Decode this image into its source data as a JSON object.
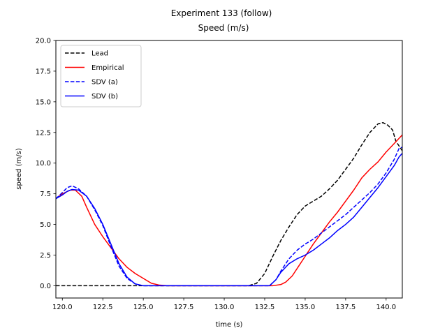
{
  "chart_data": {
    "type": "line",
    "title": "Experiment 133 (follow)",
    "subtitle": "Speed (m/s)",
    "xlabel": "time (s)",
    "ylabel": "speed (m/s)",
    "xlim": [
      119.6,
      141.0
    ],
    "ylim": [
      -1.0,
      20.0
    ],
    "xticks": [
      120.0,
      122.5,
      125.0,
      127.5,
      130.0,
      132.5,
      135.0,
      137.5,
      140.0
    ],
    "xtick_labels": [
      "120.0",
      "122.5",
      "125.0",
      "127.5",
      "130.0",
      "132.5",
      "135.0",
      "137.5",
      "140.0"
    ],
    "yticks": [
      0.0,
      2.5,
      5.0,
      7.5,
      10.0,
      12.5,
      15.0,
      17.5,
      20.0
    ],
    "ytick_labels": [
      "0.0",
      "2.5",
      "5.0",
      "7.5",
      "10.0",
      "12.5",
      "15.0",
      "17.5",
      "20.0"
    ],
    "grid": false,
    "legend_position": "upper-left",
    "series": [
      {
        "name": "Lead",
        "color": "#000000",
        "style": "dashed",
        "points": [
          [
            119.6,
            0.0
          ],
          [
            131.5,
            0.0
          ],
          [
            132.0,
            0.2
          ],
          [
            132.5,
            1.0
          ],
          [
            133.0,
            2.4
          ],
          [
            133.5,
            3.7
          ],
          [
            134.0,
            4.8
          ],
          [
            134.5,
            5.8
          ],
          [
            135.0,
            6.5
          ],
          [
            135.5,
            6.9
          ],
          [
            136.0,
            7.3
          ],
          [
            136.5,
            7.9
          ],
          [
            137.0,
            8.6
          ],
          [
            137.5,
            9.5
          ],
          [
            138.0,
            10.4
          ],
          [
            138.5,
            11.5
          ],
          [
            139.0,
            12.5
          ],
          [
            139.5,
            13.2
          ],
          [
            139.8,
            13.3
          ],
          [
            140.1,
            13.1
          ],
          [
            140.4,
            12.7
          ],
          [
            140.6,
            11.8
          ],
          [
            140.8,
            11.4
          ],
          [
            141.0,
            11.0
          ]
        ]
      },
      {
        "name": "Empirical",
        "color": "#ff0000",
        "style": "solid",
        "points": [
          [
            119.6,
            7.1
          ],
          [
            120.0,
            7.5
          ],
          [
            120.5,
            7.8
          ],
          [
            120.8,
            7.8
          ],
          [
            121.2,
            7.3
          ],
          [
            121.5,
            6.4
          ],
          [
            122.0,
            5.0
          ],
          [
            122.5,
            4.0
          ],
          [
            123.0,
            3.1
          ],
          [
            123.5,
            2.2
          ],
          [
            124.0,
            1.5
          ],
          [
            124.5,
            1.0
          ],
          [
            125.0,
            0.6
          ],
          [
            125.5,
            0.2
          ],
          [
            126.0,
            0.05
          ],
          [
            126.5,
            0.0
          ],
          [
            133.0,
            0.0
          ],
          [
            133.5,
            0.1
          ],
          [
            133.8,
            0.3
          ],
          [
            134.2,
            0.8
          ],
          [
            134.6,
            1.6
          ],
          [
            135.0,
            2.4
          ],
          [
            135.5,
            3.4
          ],
          [
            136.0,
            4.3
          ],
          [
            136.5,
            5.2
          ],
          [
            137.0,
            6.0
          ],
          [
            137.5,
            6.9
          ],
          [
            138.0,
            7.8
          ],
          [
            138.5,
            8.8
          ],
          [
            139.0,
            9.5
          ],
          [
            139.5,
            10.1
          ],
          [
            140.0,
            10.9
          ],
          [
            140.5,
            11.6
          ],
          [
            141.0,
            12.3
          ]
        ]
      },
      {
        "name": "SDV (a)",
        "color": "#0000ff",
        "style": "dashed",
        "points": [
          [
            119.6,
            7.1
          ],
          [
            120.0,
            7.6
          ],
          [
            120.3,
            8.0
          ],
          [
            120.6,
            8.15
          ],
          [
            121.0,
            7.9
          ],
          [
            121.5,
            7.3
          ],
          [
            122.0,
            6.2
          ],
          [
            122.5,
            4.9
          ],
          [
            123.0,
            3.2
          ],
          [
            123.5,
            1.6
          ],
          [
            124.0,
            0.6
          ],
          [
            124.5,
            0.15
          ],
          [
            125.0,
            0.0
          ],
          [
            132.8,
            0.0
          ],
          [
            133.2,
            0.5
          ],
          [
            133.5,
            1.2
          ],
          [
            134.0,
            2.2
          ],
          [
            134.5,
            2.9
          ],
          [
            135.0,
            3.4
          ],
          [
            135.5,
            3.8
          ],
          [
            136.0,
            4.3
          ],
          [
            136.5,
            4.8
          ],
          [
            137.0,
            5.3
          ],
          [
            137.5,
            5.8
          ],
          [
            138.0,
            6.4
          ],
          [
            138.5,
            7.0
          ],
          [
            139.0,
            7.6
          ],
          [
            139.5,
            8.3
          ],
          [
            140.0,
            9.2
          ],
          [
            140.5,
            10.3
          ],
          [
            140.8,
            11.2
          ],
          [
            141.0,
            11.3
          ]
        ]
      },
      {
        "name": "SDV (b)",
        "color": "#0000ff",
        "style": "solid",
        "points": [
          [
            119.6,
            7.1
          ],
          [
            120.0,
            7.4
          ],
          [
            120.3,
            7.7
          ],
          [
            120.6,
            7.85
          ],
          [
            121.0,
            7.8
          ],
          [
            121.5,
            7.3
          ],
          [
            122.0,
            6.3
          ],
          [
            122.5,
            5.0
          ],
          [
            123.0,
            3.4
          ],
          [
            123.5,
            1.8
          ],
          [
            124.0,
            0.7
          ],
          [
            124.5,
            0.15
          ],
          [
            125.0,
            0.0
          ],
          [
            132.8,
            0.0
          ],
          [
            133.2,
            0.5
          ],
          [
            133.5,
            1.1
          ],
          [
            134.0,
            1.8
          ],
          [
            134.5,
            2.2
          ],
          [
            135.0,
            2.5
          ],
          [
            135.5,
            2.9
          ],
          [
            136.0,
            3.4
          ],
          [
            136.5,
            3.9
          ],
          [
            137.0,
            4.5
          ],
          [
            137.5,
            5.0
          ],
          [
            138.0,
            5.6
          ],
          [
            138.5,
            6.4
          ],
          [
            139.0,
            7.2
          ],
          [
            139.5,
            8.0
          ],
          [
            140.0,
            8.9
          ],
          [
            140.5,
            9.8
          ],
          [
            140.8,
            10.5
          ],
          [
            141.0,
            10.8
          ]
        ]
      }
    ]
  }
}
